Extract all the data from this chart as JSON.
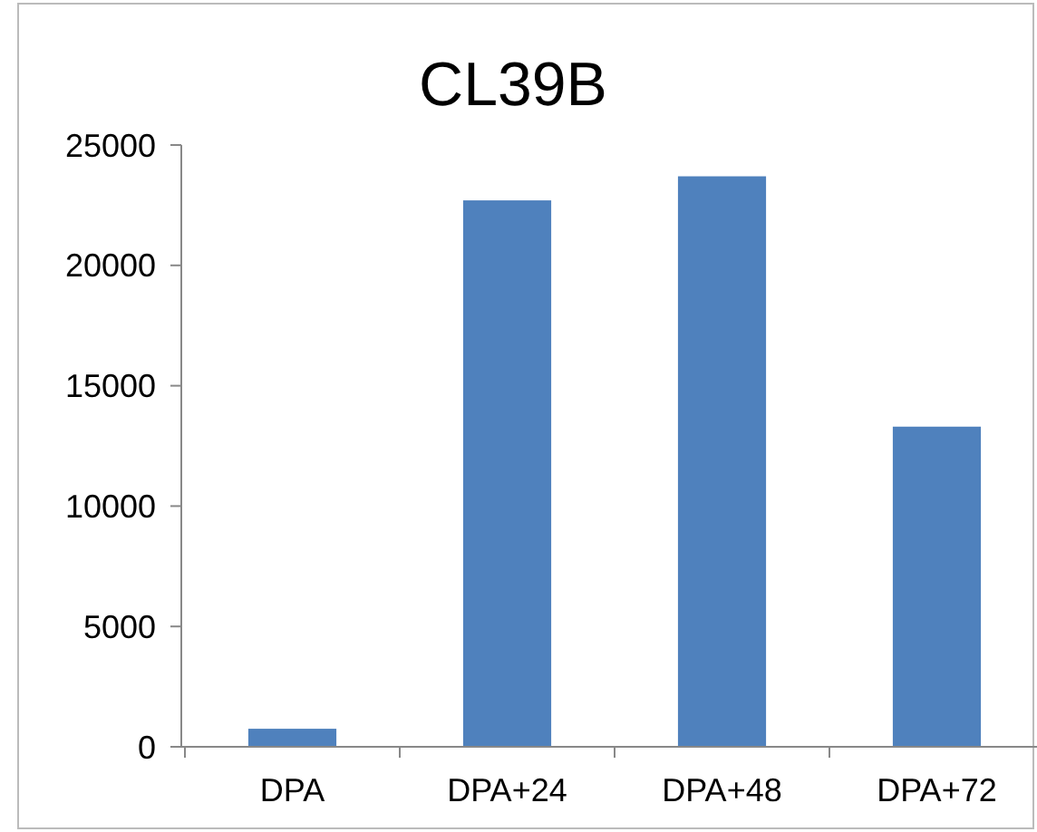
{
  "chart_data": {
    "type": "bar",
    "title": "CL39B",
    "categories": [
      "DPA",
      "DPA+24",
      "DPA+48",
      "DPA+72"
    ],
    "values": [
      750,
      22700,
      23700,
      13300
    ],
    "color": "#4f81bd",
    "ylim": [
      0,
      25000
    ],
    "yticks": [
      0,
      5000,
      10000,
      15000,
      20000,
      25000
    ],
    "grid": false
  }
}
